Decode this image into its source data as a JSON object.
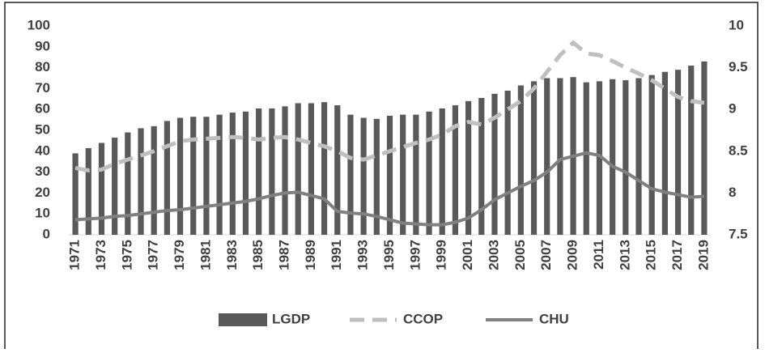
{
  "chart_data": {
    "type": "bar-line",
    "categories": [
      "1971",
      null,
      "1973",
      null,
      "1975",
      null,
      "1977",
      null,
      "1979",
      null,
      "1981",
      null,
      "1983",
      null,
      "1985",
      null,
      "1987",
      null,
      "1989",
      null,
      "1991",
      null,
      "1993",
      null,
      "1995",
      null,
      "1997",
      null,
      "1999",
      null,
      "2001",
      null,
      "2003",
      null,
      "2005",
      null,
      "2007",
      null,
      "2009",
      null,
      "2011",
      null,
      "2013",
      null,
      "2015",
      null,
      "2017",
      null,
      "2019"
    ],
    "series": [
      {
        "name": "LGDP",
        "type": "bar",
        "color": "#595959",
        "values": [
          39,
          41.5,
          44,
          46.5,
          49,
          51,
          52,
          54.5,
          56,
          56.5,
          56.5,
          57.5,
          58.5,
          59,
          60.5,
          60.5,
          61.5,
          63,
          63,
          63.5,
          62,
          57.5,
          56,
          55.5,
          57,
          57.5,
          57.5,
          59,
          60.5,
          62,
          64,
          65.5,
          67.5,
          69,
          71.5,
          73.5,
          75,
          75,
          75.5,
          73,
          73.5,
          74.5,
          74,
          75,
          76.5,
          78,
          79,
          81,
          83
        ]
      },
      {
        "name": "CCOP",
        "type": "line",
        "dashed": true,
        "axis": "y2",
        "color": "#bfbfbf",
        "values": [
          8.3,
          8.27,
          8.28,
          8.35,
          8.4,
          8.45,
          8.5,
          8.56,
          8.62,
          8.64,
          8.65,
          8.66,
          8.67,
          8.66,
          8.64,
          8.66,
          8.67,
          8.64,
          8.6,
          8.56,
          8.5,
          8.42,
          8.4,
          8.45,
          8.5,
          8.55,
          8.6,
          8.64,
          8.7,
          8.8,
          8.85,
          8.82,
          8.9,
          9.0,
          9.1,
          9.25,
          9.45,
          9.65,
          9.8,
          9.67,
          9.65,
          9.58,
          9.5,
          9.43,
          9.35,
          9.25,
          9.15,
          9.1,
          9.08
        ]
      },
      {
        "name": "CHU",
        "type": "line",
        "dashed": false,
        "axis": "y2",
        "color": "#808080",
        "values": [
          7.68,
          7.69,
          7.7,
          7.72,
          7.73,
          7.75,
          7.77,
          7.79,
          7.8,
          7.82,
          7.84,
          7.86,
          7.88,
          7.9,
          7.93,
          7.97,
          8.0,
          8.01,
          7.97,
          7.93,
          7.78,
          7.76,
          7.75,
          7.72,
          7.68,
          7.64,
          7.63,
          7.62,
          7.62,
          7.65,
          7.7,
          7.8,
          7.92,
          8.0,
          8.08,
          8.15,
          8.25,
          8.4,
          8.44,
          8.48,
          8.45,
          8.32,
          8.25,
          8.15,
          8.05,
          8.01,
          7.98,
          7.95,
          7.96
        ]
      }
    ],
    "ylim": [
      0,
      100
    ],
    "yticks": [
      0,
      10,
      20,
      30,
      40,
      50,
      60,
      70,
      80,
      90,
      100
    ],
    "y2lim": [
      7.5,
      10
    ],
    "y2ticks": [
      7.5,
      8,
      8.5,
      9,
      9.5,
      10
    ],
    "legend": "bottom",
    "grid": false
  }
}
